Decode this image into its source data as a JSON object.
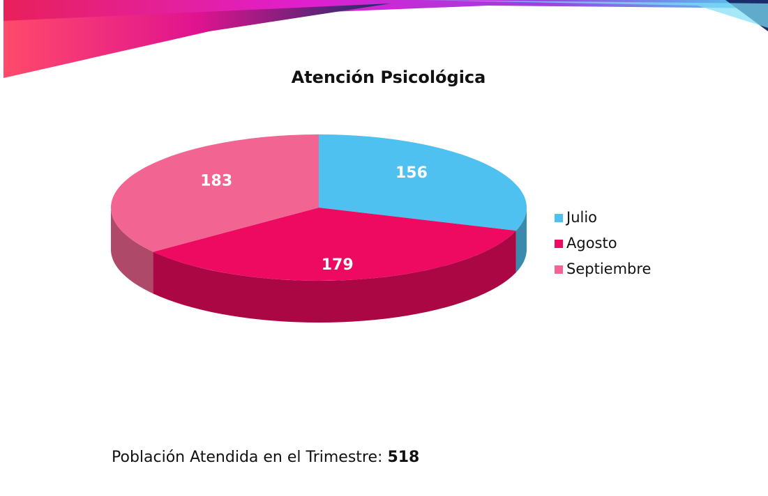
{
  "chart_data": {
    "type": "pie",
    "title": "Atención Psicológica",
    "categories": [
      "Julio",
      "Agosto",
      "Septiembre"
    ],
    "values": [
      156,
      179,
      183
    ],
    "colors": [
      "#4fc1f0",
      "#ee0a60",
      "#f26592"
    ],
    "legend": "right"
  },
  "footer": {
    "label": "Población Atendida en el Trimestre:",
    "total": 518
  }
}
